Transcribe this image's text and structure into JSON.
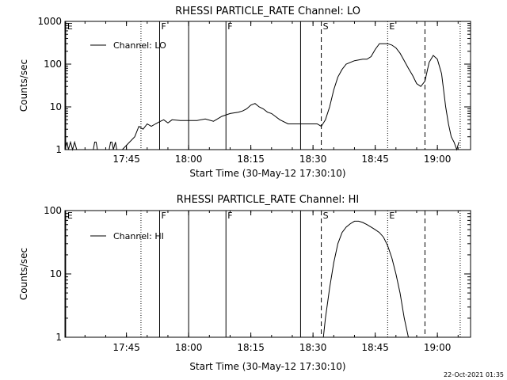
{
  "timestamp": "22-Oct-2021 01:35",
  "chart_data": [
    {
      "type": "line",
      "title": "RHESSI PARTICLE_RATE Channel: LO",
      "xlabel": "Start Time (30-May-12 17:30:10)",
      "ylabel": "Counts/sec",
      "ylog": true,
      "ylim": [
        1,
        1000
      ],
      "xlim": [
        "17:30:10",
        "19:08:00"
      ],
      "x_ticks": [
        "17:45",
        "18:00",
        "18:15",
        "18:30",
        "18:45",
        "19:00"
      ],
      "y_ticks": [
        "1",
        "10",
        "100",
        "1000"
      ],
      "legend": {
        "position": "top-left",
        "label": "Channel: LO"
      },
      "markers": [
        {
          "label": "E",
          "time": "17:30:20",
          "style": "solid"
        },
        {
          "label": "",
          "time": "17:48:30",
          "style": "dotted"
        },
        {
          "label": "F",
          "time": "17:53:00",
          "style": "solid"
        },
        {
          "label": "",
          "time": "18:00:00",
          "style": "solid"
        },
        {
          "label": "F",
          "time": "18:09:00",
          "style": "solid"
        },
        {
          "label": "",
          "time": "18:27:00",
          "style": "solid"
        },
        {
          "label": "S",
          "time": "18:32:00",
          "style": "dashed"
        },
        {
          "label": "E",
          "time": "18:48:00",
          "style": "dotted"
        },
        {
          "label": "",
          "time": "18:57:00",
          "style": "dashed"
        },
        {
          "label": "",
          "time": "19:05:30",
          "style": "dotted"
        }
      ],
      "series": [
        {
          "x": [
            "17:30:10",
            "17:30:40",
            "17:31:00",
            "17:31:30",
            "17:32:00",
            "17:32:30",
            "17:33:00",
            "17:37:00",
            "17:37:20",
            "17:37:40",
            "17:38:00",
            "17:40:50",
            "17:41:10",
            "17:41:30",
            "17:41:50",
            "17:42:20",
            "17:42:40",
            "17:43:00",
            "17:44:00",
            "17:47:00",
            "17:48:00",
            "17:49:00",
            "17:50:00",
            "17:51:00",
            "17:52:00",
            "17:53:00",
            "17:54:00",
            "17:55:00",
            "17:56:00",
            "17:58:00",
            "18:00:00",
            "18:02:00",
            "18:04:00",
            "18:06:00",
            "18:08:00",
            "18:10:00",
            "18:12:00",
            "18:13:00",
            "18:14:00",
            "18:15:00",
            "18:16:00",
            "18:17:00",
            "18:18:00",
            "18:19:00",
            "18:20:00",
            "18:22:00",
            "18:24:00",
            "18:26:00",
            "18:28:00",
            "18:30:00",
            "18:31:00",
            "18:32:00",
            "18:33:00",
            "18:34:00",
            "18:35:00",
            "18:36:00",
            "18:37:00",
            "18:38:00",
            "18:39:00",
            "18:40:00",
            "18:41:00",
            "18:42:00",
            "18:43:00",
            "18:44:00",
            "18:45:00",
            "18:46:00",
            "18:47:00",
            "18:48:00",
            "18:49:00",
            "18:50:00",
            "18:51:00",
            "18:52:00",
            "18:53:00",
            "18:54:00",
            "18:55:00",
            "18:56:00",
            "18:57:00",
            "18:58:00",
            "18:59:00",
            "19:00:00",
            "19:01:00",
            "19:02:00",
            "19:02:40",
            "19:03:20",
            "19:04:00",
            "19:04:40",
            "19:05:10"
          ],
          "y": [
            1,
            1.5,
            1,
            1.5,
            1,
            1.5,
            1,
            1,
            1.5,
            1.5,
            1,
            1,
            1.5,
            1.5,
            1,
            1.5,
            1,
            1,
            1,
            2,
            3.5,
            3,
            4,
            3.5,
            4,
            4.5,
            5,
            4.2,
            5,
            4.8,
            4.8,
            4.8,
            5.2,
            4.6,
            6,
            7,
            7.5,
            8,
            9,
            11,
            12,
            10,
            9,
            7.5,
            7,
            5,
            4,
            4,
            4,
            4,
            4,
            3.5,
            5,
            10,
            25,
            50,
            75,
            100,
            110,
            120,
            125,
            130,
            130,
            150,
            220,
            300,
            300,
            300,
            280,
            240,
            180,
            120,
            80,
            55,
            35,
            30,
            40,
            110,
            160,
            130,
            60,
            10,
            4,
            2,
            1.5,
            1,
            1.5
          ]
        }
      ]
    },
    {
      "type": "line",
      "title": "RHESSI PARTICLE_RATE Channel: HI",
      "xlabel": "Start Time (30-May-12 17:30:10)",
      "ylabel": "Counts/sec",
      "ylog": true,
      "ylim": [
        1,
        100
      ],
      "xlim": [
        "17:30:10",
        "19:08:00"
      ],
      "x_ticks": [
        "17:45",
        "18:00",
        "18:15",
        "18:30",
        "18:45",
        "19:00"
      ],
      "y_ticks": [
        "1",
        "10",
        "100"
      ],
      "legend": {
        "position": "top-left",
        "label": "Channel: HI"
      },
      "markers": [
        {
          "label": "E",
          "time": "17:30:20",
          "style": "solid"
        },
        {
          "label": "",
          "time": "17:48:30",
          "style": "dotted"
        },
        {
          "label": "F",
          "time": "17:53:00",
          "style": "solid"
        },
        {
          "label": "",
          "time": "18:00:00",
          "style": "solid"
        },
        {
          "label": "F",
          "time": "18:09:00",
          "style": "solid"
        },
        {
          "label": "",
          "time": "18:27:00",
          "style": "solid"
        },
        {
          "label": "S",
          "time": "18:32:00",
          "style": "dashed"
        },
        {
          "label": "E",
          "time": "18:48:00",
          "style": "dotted"
        },
        {
          "label": "",
          "time": "18:57:00",
          "style": "dashed"
        },
        {
          "label": "",
          "time": "19:05:30",
          "style": "dotted"
        }
      ],
      "series": [
        {
          "x": [
            "18:32:30",
            "18:33:00",
            "18:34:00",
            "18:35:00",
            "18:36:00",
            "18:37:00",
            "18:38:00",
            "18:39:00",
            "18:40:00",
            "18:41:00",
            "18:42:00",
            "18:43:00",
            "18:44:00",
            "18:45:00",
            "18:46:00",
            "18:47:00",
            "18:48:00",
            "18:49:00",
            "18:50:00",
            "18:51:00",
            "18:52:00",
            "18:53:00"
          ],
          "y": [
            1,
            2,
            6,
            15,
            30,
            45,
            55,
            62,
            68,
            68,
            65,
            60,
            55,
            50,
            45,
            38,
            28,
            18,
            10,
            5,
            2,
            1
          ]
        }
      ]
    }
  ]
}
